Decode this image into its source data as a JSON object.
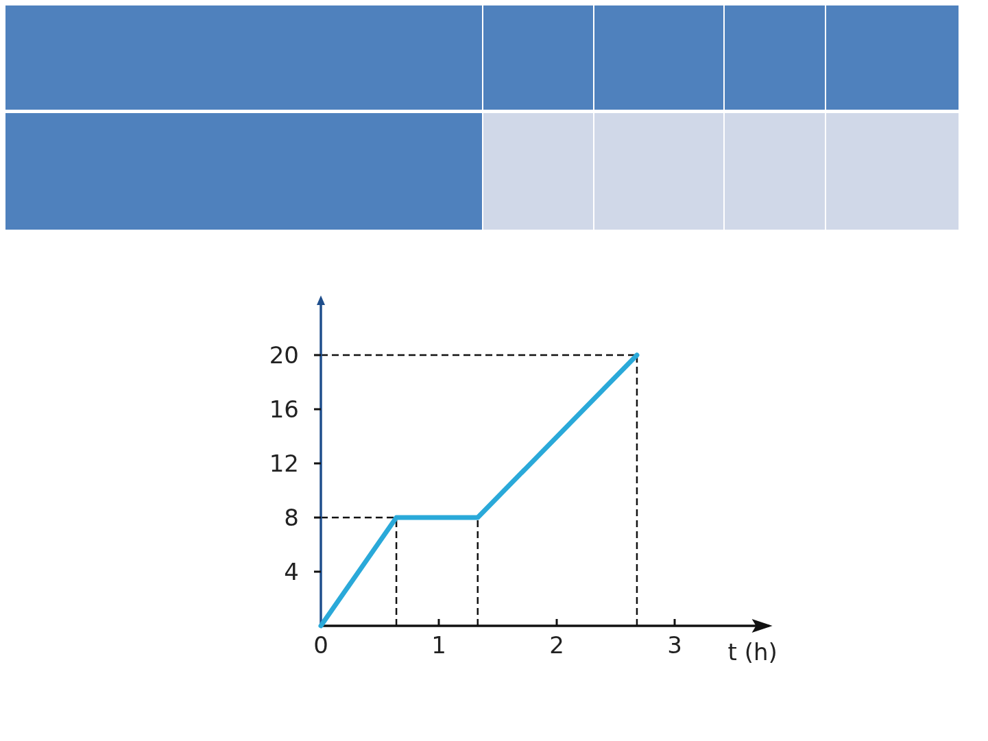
{
  "chart_data": {
    "type": "line",
    "xlabel": "t (h)",
    "x": [
      0,
      0.64,
      1.33,
      2.68
    ],
    "series": [
      {
        "color": "#2aa9d9",
        "values": [
          0,
          8,
          8,
          20
        ]
      }
    ],
    "xlim": [
      0,
      3.8
    ],
    "ylim": [
      0,
      24.2
    ],
    "xticks": [
      0,
      1,
      2,
      3
    ],
    "yticks": [
      4,
      8,
      12,
      16,
      20
    ],
    "ref_lines": [
      {
        "axis": "y",
        "value": 8,
        "line_style": "dashed",
        "color": "#111111"
      },
      {
        "axis": "y",
        "value": 20,
        "line_style": "dashed",
        "color": "#111111"
      },
      {
        "axis": "x",
        "value": 0.64,
        "line_style": "dashed",
        "color": "#111111"
      },
      {
        "axis": "x",
        "value": 1.33,
        "line_style": "dashed",
        "color": "#111111"
      },
      {
        "axis": "x",
        "value": 2.68,
        "line_style": "dashed",
        "color": "#111111"
      }
    ],
    "grid": false,
    "marker": "none",
    "line_style": "solid"
  }
}
